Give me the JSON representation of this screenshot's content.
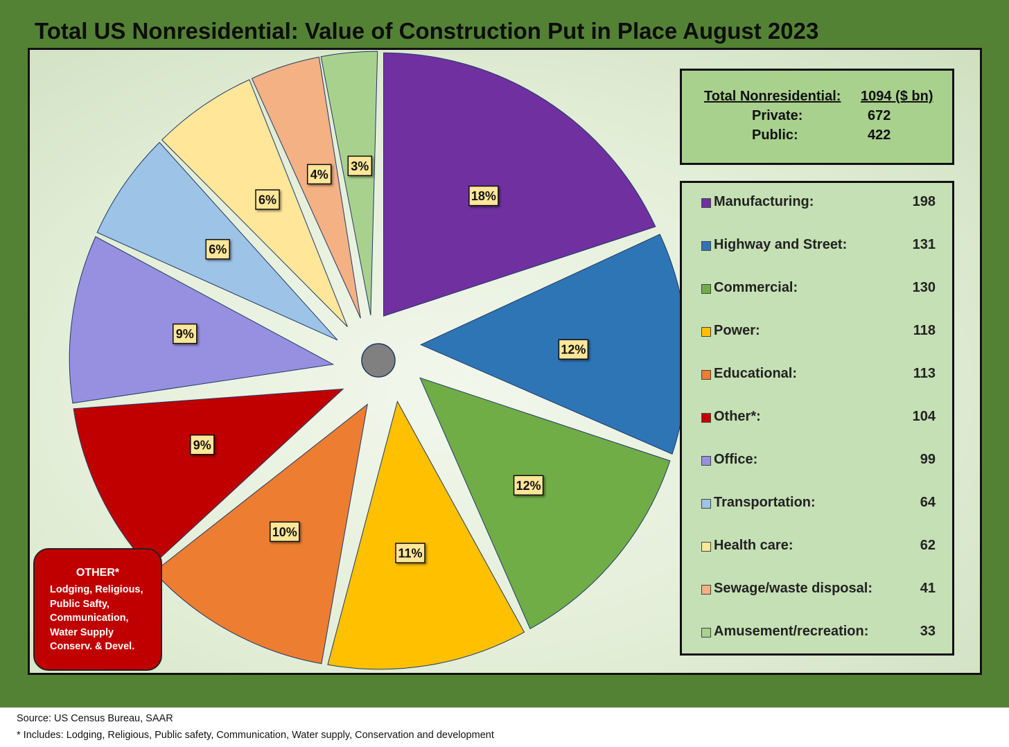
{
  "title": "Total US Nonresidential: Value of Construction Put in Place August 2023",
  "totals": {
    "total_label": "Total Nonresidential:",
    "total_value": "1094 ($ bn)",
    "private_label": "Private:",
    "private_value": "672",
    "public_label": "Public:",
    "public_value": "422"
  },
  "other_box": {
    "title": "OTHER*",
    "lines": [
      "Lodging, Religious,",
      "Public Safty,",
      "Communication,",
      "Water Supply",
      "Conserv. & Devel."
    ]
  },
  "footer": {
    "source": "Source: US Census Bureau, SAAR",
    "footnote": "* Includes: Lodging, Religious, Public safety, Communication, Water supply, Conservation and development"
  },
  "chart_data": {
    "type": "pie",
    "title": "Total US Nonresidential: Value of Construction Put in Place August 2023",
    "unit": "$ bn",
    "slices": [
      {
        "name": "Manufacturing:",
        "value": 198,
        "label": "18%",
        "color": "#7030a0"
      },
      {
        "name": "Highway and Street:",
        "value": 131,
        "label": "12%",
        "color": "#2e75b6"
      },
      {
        "name": "Commercial:",
        "value": 130,
        "label": "12%",
        "color": "#70ad47"
      },
      {
        "name": "Power:",
        "value": 118,
        "label": "11%",
        "color": "#ffc000"
      },
      {
        "name": "Educational:",
        "value": 113,
        "label": "10%",
        "color": "#ed7d31"
      },
      {
        "name": "Other*:",
        "value": 104,
        "label": "9%",
        "color": "#c00000"
      },
      {
        "name": "Office:",
        "value": 99,
        "label": "9%",
        "color": "#9790e0"
      },
      {
        "name": "Transportation:",
        "value": 64,
        "label": "6%",
        "color": "#9dc3e6"
      },
      {
        "name": "Health care:",
        "value": 62,
        "label": "6%",
        "color": "#ffe699"
      },
      {
        "name": "Sewage/waste disposal:",
        "value": 41,
        "label": "4%",
        "color": "#f4b183"
      },
      {
        "name": "Amusement/recreation:",
        "value": 33,
        "label": "3%",
        "color": "#a9d18e"
      }
    ],
    "legend": "right",
    "center_color": "#808080"
  }
}
